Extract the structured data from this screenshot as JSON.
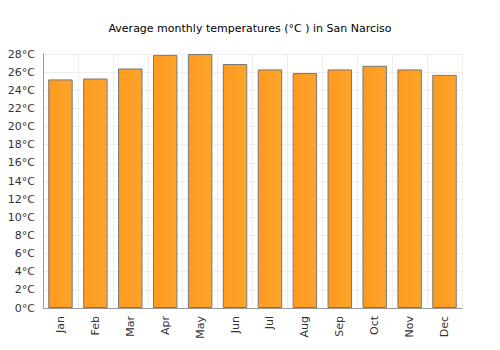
{
  "chart_data": {
    "type": "bar",
    "title": "Average monthly temperatures (°C ) in San Narciso",
    "categories": [
      "Jan",
      "Feb",
      "Mar",
      "Apr",
      "May",
      "Jun",
      "Jul",
      "Aug",
      "Sep",
      "Oct",
      "Nov",
      "Dec"
    ],
    "values": [
      25.2,
      25.3,
      26.4,
      27.9,
      28.0,
      26.9,
      26.3,
      25.9,
      26.3,
      26.7,
      26.3,
      25.7
    ],
    "color": "#fba52c",
    "ylim": [
      0,
      28
    ],
    "yticks": [
      {
        "value": 0,
        "label": "0°C"
      },
      {
        "value": 2,
        "label": "2°C"
      },
      {
        "value": 4,
        "label": "4°C"
      },
      {
        "value": 6,
        "label": "6°C"
      },
      {
        "value": 8,
        "label": "8°C"
      },
      {
        "value": 10,
        "label": "10°C"
      },
      {
        "value": 12,
        "label": "12°C"
      },
      {
        "value": 14,
        "label": "14°C"
      },
      {
        "value": 16,
        "label": "16°C"
      },
      {
        "value": 18,
        "label": "18°C"
      },
      {
        "value": 20,
        "label": "20°C"
      },
      {
        "value": 22,
        "label": "22°C"
      },
      {
        "value": 24,
        "label": "24°C"
      },
      {
        "value": 26,
        "label": "26°C"
      },
      {
        "value": 28,
        "label": "28°C"
      }
    ],
    "grid": true
  }
}
